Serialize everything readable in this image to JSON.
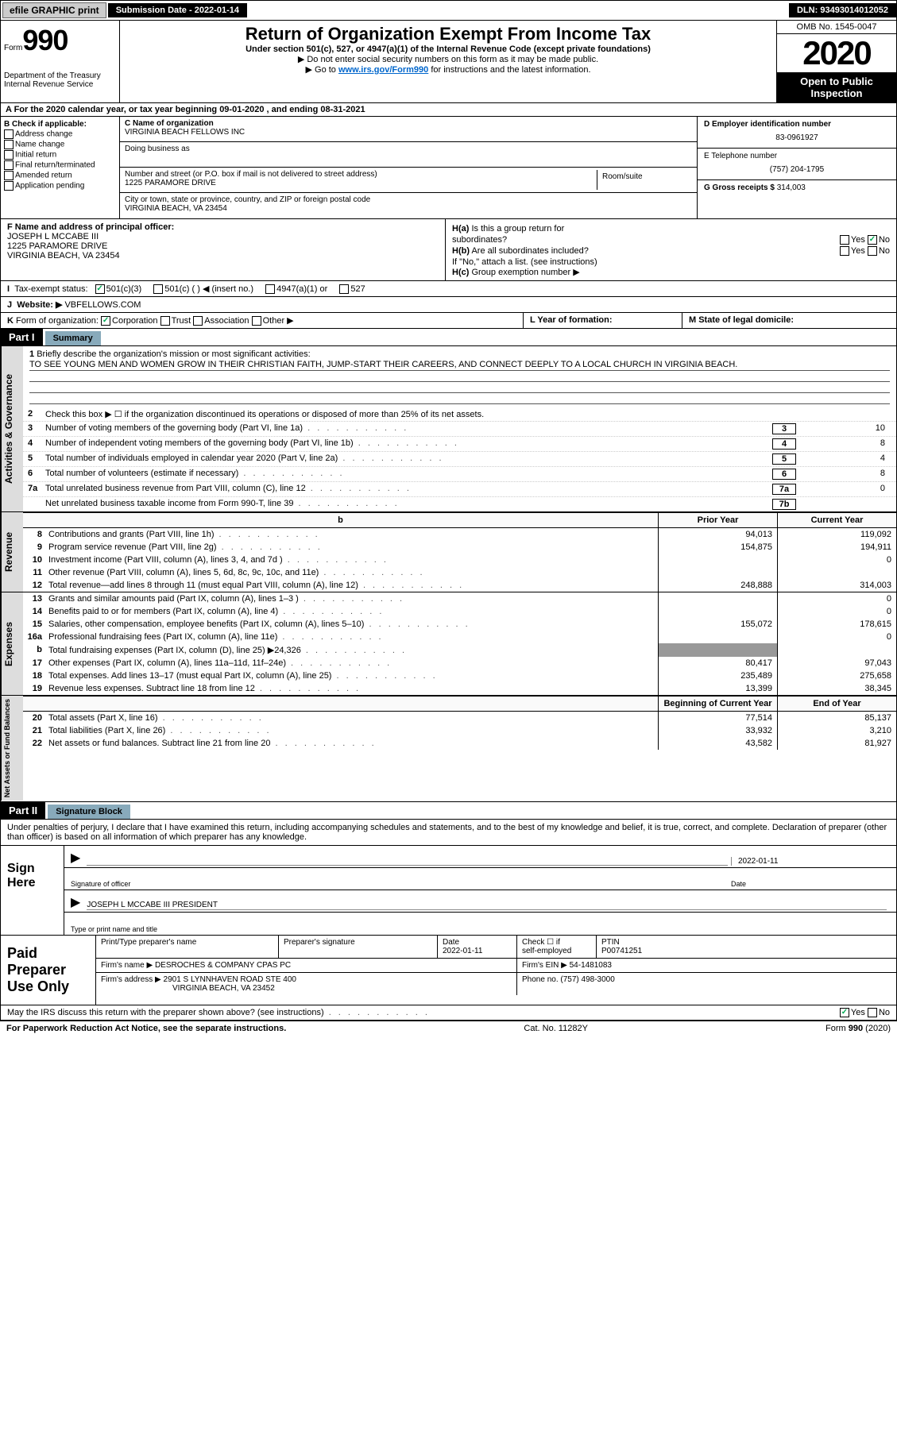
{
  "topbar": {
    "efile": "efile GRAPHIC print",
    "sub_date_label": "Submission Date - 2022-01-14",
    "dln": "DLN: 93493014012052"
  },
  "header": {
    "form_word": "Form",
    "form_no": "990",
    "dept": "Department of the Treasury",
    "irs": "Internal Revenue Service",
    "title": "Return of Organization Exempt From Income Tax",
    "subtitle": "Under section 501(c), 527, or 4947(a)(1) of the Internal Revenue Code (except private foundations)",
    "note1": "▶ Do not enter social security numbers on this form as it may be made public.",
    "note2_pre": "▶ Go to ",
    "note2_link": "www.irs.gov/Form990",
    "note2_post": " for instructions and the latest information.",
    "omb": "OMB No. 1545-0047",
    "year": "2020",
    "inspect1": "Open to Public",
    "inspect2": "Inspection"
  },
  "lineA": "A For the 2020 calendar year, or tax year beginning 09-01-2020   , and ending 08-31-2021",
  "secB": {
    "label": "B Check if applicable:",
    "opts": [
      "Address change",
      "Name change",
      "Initial return",
      "Final return/terminated",
      "Amended return",
      "Application pending"
    ]
  },
  "secC": {
    "name_label": "C Name of organization",
    "name": "VIRGINIA BEACH FELLOWS INC",
    "dba_label": "Doing business as",
    "dba": "",
    "addr_label": "Number and street (or P.O. box if mail is not delivered to street address)",
    "addr": "1225 PARAMORE DRIVE",
    "room_label": "Room/suite",
    "city_label": "City or town, state or province, country, and ZIP or foreign postal code",
    "city": "VIRGINIA BEACH, VA  23454"
  },
  "secD": {
    "ein_label": "D Employer identification number",
    "ein": "83-0961927",
    "tel_label": "E Telephone number",
    "tel": "(757) 204-1795",
    "gross_label": "G Gross receipts $",
    "gross": "314,003"
  },
  "secF": {
    "label": "F Name and address of principal officer:",
    "name": "JOSEPH L MCCABE III",
    "addr1": "1225 PARAMORE DRIVE",
    "addr2": "VIRGINIA BEACH, VA  23454"
  },
  "secH": {
    "ha": "Is this a group return for",
    "ha2": "subordinates?",
    "hb": "Are all subordinates included?",
    "hnote": "If \"No,\" attach a list. (see instructions)",
    "hc": "Group exemption number ▶",
    "Hal": "H(a)",
    "Hbl": "H(b)",
    "Hcl": "H(c)",
    "yes": "Yes",
    "no": "No"
  },
  "lineI": {
    "label": "Tax-exempt status:",
    "o1": "501(c)(3)",
    "o2": "501(c) (  ) ◀ (insert no.)",
    "o3": "4947(a)(1) or",
    "o4": "527",
    "pre": "I"
  },
  "lineJ": {
    "pre": "J",
    "label": "Website: ▶",
    "val": "VBFELLOWS.COM"
  },
  "lineK": {
    "pre": "K",
    "label": "Form of organization:",
    "o1": "Corporation",
    "o2": "Trust",
    "o3": "Association",
    "o4": "Other ▶",
    "L": "L Year of formation:",
    "Lv": "",
    "M": "M State of legal domicile:",
    "Mv": ""
  },
  "part1": {
    "hdr": "Part I",
    "title": "Summary"
  },
  "gov": {
    "tab": "Activities & Governance",
    "l1": "Briefly describe the organization's mission or most significant activities:",
    "mission": "TO SEE YOUNG MEN AND WOMEN GROW IN THEIR CHRISTIAN FAITH, JUMP-START THEIR CAREERS, AND CONNECT DEEPLY TO A LOCAL CHURCH IN VIRGINIA BEACH.",
    "l2": "Check this box ▶ ☐ if the organization discontinued its operations or disposed of more than 25% of its net assets.",
    "lines": [
      {
        "n": "3",
        "t": "Number of voting members of the governing body (Part VI, line 1a)",
        "b": "3",
        "v": "10"
      },
      {
        "n": "4",
        "t": "Number of independent voting members of the governing body (Part VI, line 1b)",
        "b": "4",
        "v": "8"
      },
      {
        "n": "5",
        "t": "Total number of individuals employed in calendar year 2020 (Part V, line 2a)",
        "b": "5",
        "v": "4"
      },
      {
        "n": "6",
        "t": "Total number of volunteers (estimate if necessary)",
        "b": "6",
        "v": "8"
      },
      {
        "n": "7a",
        "t": "Total unrelated business revenue from Part VIII, column (C), line 12",
        "b": "7a",
        "v": "0"
      },
      {
        "n": "",
        "t": "Net unrelated business taxable income from Form 990-T, line 39",
        "b": "7b",
        "v": ""
      }
    ]
  },
  "tableHead": {
    "b": "b",
    "py": "Prior Year",
    "cy": "Current Year"
  },
  "rev": {
    "tab": "Revenue",
    "rows": [
      {
        "n": "8",
        "t": "Contributions and grants (Part VIII, line 1h)",
        "py": "94,013",
        "cy": "119,092"
      },
      {
        "n": "9",
        "t": "Program service revenue (Part VIII, line 2g)",
        "py": "154,875",
        "cy": "194,911"
      },
      {
        "n": "10",
        "t": "Investment income (Part VIII, column (A), lines 3, 4, and 7d )",
        "py": "",
        "cy": "0"
      },
      {
        "n": "11",
        "t": "Other revenue (Part VIII, column (A), lines 5, 6d, 8c, 9c, 10c, and 11e)",
        "py": "",
        "cy": ""
      },
      {
        "n": "12",
        "t": "Total revenue—add lines 8 through 11 (must equal Part VIII, column (A), line 12)",
        "py": "248,888",
        "cy": "314,003"
      }
    ]
  },
  "exp": {
    "tab": "Expenses",
    "rows": [
      {
        "n": "13",
        "t": "Grants and similar amounts paid (Part IX, column (A), lines 1–3 )",
        "py": "",
        "cy": "0"
      },
      {
        "n": "14",
        "t": "Benefits paid to or for members (Part IX, column (A), line 4)",
        "py": "",
        "cy": "0"
      },
      {
        "n": "15",
        "t": "Salaries, other compensation, employee benefits (Part IX, column (A), lines 5–10)",
        "py": "155,072",
        "cy": "178,615"
      },
      {
        "n": "16a",
        "t": "Professional fundraising fees (Part IX, column (A), line 11e)",
        "py": "",
        "cy": "0"
      },
      {
        "n": "b",
        "t": "Total fundraising expenses (Part IX, column (D), line 25) ▶24,326",
        "py": "",
        "cy": "",
        "shade": true
      },
      {
        "n": "17",
        "t": "Other expenses (Part IX, column (A), lines 11a–11d, 11f–24e)",
        "py": "80,417",
        "cy": "97,043"
      },
      {
        "n": "18",
        "t": "Total expenses. Add lines 13–17 (must equal Part IX, column (A), line 25)",
        "py": "235,489",
        "cy": "275,658"
      },
      {
        "n": "19",
        "t": "Revenue less expenses. Subtract line 18 from line 12",
        "py": "13,399",
        "cy": "38,345"
      }
    ]
  },
  "net": {
    "tab": "Net Assets or Fund Balances",
    "head_py": "Beginning of Current Year",
    "head_cy": "End of Year",
    "rows": [
      {
        "n": "20",
        "t": "Total assets (Part X, line 16)",
        "py": "77,514",
        "cy": "85,137"
      },
      {
        "n": "21",
        "t": "Total liabilities (Part X, line 26)",
        "py": "33,932",
        "cy": "3,210"
      },
      {
        "n": "22",
        "t": "Net assets or fund balances. Subtract line 21 from line 20",
        "py": "43,582",
        "cy": "81,927"
      }
    ]
  },
  "part2": {
    "hdr": "Part II",
    "title": "Signature Block"
  },
  "sig": {
    "decl": "Under penalties of perjury, I declare that I have examined this return, including accompanying schedules and statements, and to the best of my knowledge and belief, it is true, correct, and complete. Declaration of preparer (other than officer) is based on all information of which preparer has any knowledge.",
    "sign_here": "Sign Here",
    "sig_officer": "Signature of officer",
    "date": "Date",
    "date_v": "2022-01-11",
    "name_title": "JOSEPH L MCCABE III PRESIDENT",
    "type_label": "Type or print name and title"
  },
  "prep": {
    "label": "Paid Preparer Use Only",
    "h1": "Print/Type preparer's name",
    "h2": "Preparer's signature",
    "h3": "Date",
    "h3v": "2022-01-11",
    "h4a": "Check ☐ if",
    "h4b": "self-employed",
    "h5": "PTIN",
    "h5v": "P00741251",
    "firm_name_l": "Firm's name   ▶",
    "firm_name": "DESROCHES & COMPANY CPAS PC",
    "firm_ein_l": "Firm's EIN ▶",
    "firm_ein": "54-1481083",
    "firm_addr_l": "Firm's address ▶",
    "firm_addr1": "2901 S LYNNHAVEN ROAD STE 400",
    "firm_addr2": "VIRGINIA BEACH, VA  23452",
    "phone_l": "Phone no.",
    "phone": "(757) 498-3000"
  },
  "discuss": {
    "t": "May the IRS discuss this return with the preparer shown above? (see instructions)",
    "yes": "Yes",
    "no": "No"
  },
  "footer": {
    "pra": "For Paperwork Reduction Act Notice, see the separate instructions.",
    "cat": "Cat. No. 11282Y",
    "form": "Form 990 (2020)"
  }
}
